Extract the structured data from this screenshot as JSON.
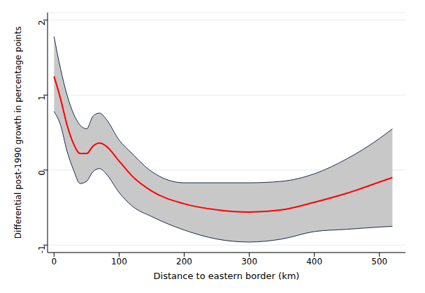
{
  "chart_data": {
    "type": "line",
    "x_label": "Distance to eastern border (km)",
    "y_label": "Differential post-1990 growth in percentage points",
    "x": [
      0,
      10,
      20,
      30,
      40,
      50,
      60,
      70,
      80,
      100,
      120,
      150,
      200,
      250,
      300,
      350,
      400,
      450,
      500,
      520
    ],
    "values": [
      1.25,
      0.95,
      0.6,
      0.35,
      0.22,
      0.22,
      0.32,
      0.36,
      0.32,
      0.12,
      -0.08,
      -0.28,
      -0.45,
      -0.53,
      -0.56,
      -0.53,
      -0.43,
      -0.31,
      -0.16,
      -0.1
    ],
    "lower": [
      0.78,
      0.6,
      0.25,
      0.0,
      -0.18,
      -0.15,
      -0.02,
      0.02,
      -0.05,
      -0.3,
      -0.48,
      -0.62,
      -0.8,
      -0.92,
      -0.96,
      -0.92,
      -0.82,
      -0.79,
      -0.76,
      -0.75
    ],
    "upper": [
      1.78,
      1.35,
      1.0,
      0.75,
      0.6,
      0.55,
      0.72,
      0.76,
      0.68,
      0.4,
      0.22,
      -0.02,
      -0.17,
      -0.17,
      -0.17,
      -0.15,
      -0.05,
      0.15,
      0.42,
      0.55
    ],
    "color": "#ff0000",
    "xlim": [
      -10,
      540
    ],
    "xticks": [
      0,
      100,
      200,
      300,
      400,
      500
    ],
    "ylim": [
      -1.1,
      2.1
    ],
    "yticks": [
      -1,
      0,
      1,
      2
    ],
    "grid": true
  }
}
